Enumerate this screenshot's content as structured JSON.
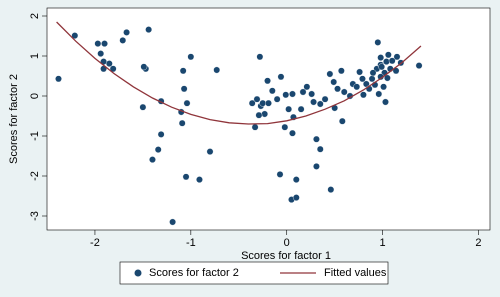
{
  "chart_data": {
    "type": "scatter",
    "xlabel": "Scores for factor 1",
    "ylabel": "Scores for factor 2",
    "xlim": [
      -2.5,
      2.12
    ],
    "ylim": [
      -3.35,
      2.2
    ],
    "xticks": [
      -2,
      -1,
      0,
      1,
      2
    ],
    "yticks": [
      -3,
      -2,
      -1,
      0,
      1,
      2
    ],
    "series": [
      {
        "name": "Scores for factor 2",
        "type": "scatter",
        "color": "#1a476f",
        "x": [
          -2.38,
          -2.21,
          -1.97,
          -1.9,
          -1.94,
          -1.91,
          -1.85,
          -1.91,
          -1.81,
          -1.71,
          -1.67,
          -1.44,
          -1.47,
          -1.49,
          -1.5,
          -1.31,
          -1.31,
          -1.4,
          -1.34,
          -1.08,
          -1.0,
          -1.07,
          -1.04,
          -1.09,
          -1.1,
          -1.05,
          -0.91,
          -0.8,
          -1.19,
          -0.73,
          -0.28,
          -0.36,
          -0.31,
          -0.27,
          -0.25,
          -0.19,
          -0.33,
          -0.23,
          -0.29,
          -0.2,
          -0.15,
          -0.1,
          -0.06,
          -0.01,
          0.02,
          -0.02,
          0.06,
          0.07,
          -0.07,
          0.1,
          0.05,
          0.1,
          0.06,
          0.17,
          0.21,
          0.26,
          0.28,
          0.15,
          0.35,
          0.4,
          0.31,
          0.35,
          0.31,
          0.45,
          0.49,
          0.53,
          0.57,
          0.6,
          0.66,
          0.69,
          0.73,
          0.76,
          0.79,
          0.8,
          0.46,
          0.5,
          0.58,
          0.83,
          0.86,
          0.89,
          0.92,
          0.95,
          0.94,
          0.98,
          1.02,
          1.04,
          1.06,
          1.08,
          1.1,
          0.98,
          1.01,
          1.03,
          0.96,
          0.98,
          1.15,
          1.19,
          1.14,
          1.38,
          0.99,
          0.9,
          1.05
        ],
        "values": [
          0.43,
          1.51,
          1.31,
          1.31,
          1.06,
          0.86,
          0.81,
          0.68,
          0.68,
          1.39,
          1.59,
          1.66,
          0.68,
          0.73,
          -0.28,
          -0.13,
          -0.96,
          -1.59,
          -1.34,
          0.63,
          0.98,
          0.18,
          -0.18,
          -0.68,
          -0.4,
          -2.02,
          -2.09,
          -1.39,
          -3.15,
          0.65,
          0.98,
          -0.18,
          -0.08,
          -0.25,
          -0.18,
          -0.18,
          -0.78,
          -0.45,
          -0.48,
          0.38,
          0.13,
          -0.08,
          0.48,
          0.03,
          -0.33,
          -0.78,
          -0.93,
          -0.53,
          -1.96,
          -2.09,
          -2.59,
          -2.54,
          0.05,
          0.1,
          0.23,
          0.05,
          -0.15,
          -0.33,
          -0.2,
          -0.08,
          -1.08,
          -1.33,
          -1.76,
          0.55,
          0.35,
          0.18,
          0.63,
          0.1,
          0,
          0.3,
          0.23,
          0.6,
          0.43,
          0.03,
          -2.34,
          -0.3,
          -0.63,
          0.3,
          0.18,
          0.43,
          0.28,
          1.34,
          0.68,
          0.78,
          0.58,
          0.86,
          1.03,
          0.68,
          0.88,
          0.48,
          0.23,
          -0.15,
          0.05,
          0.96,
          0.98,
          0.83,
          0.63,
          0.76,
          0.73,
          0.58,
          0.45
        ]
      },
      {
        "name": "Fitted values",
        "type": "line",
        "color": "#90353b",
        "x": [
          -2.4,
          -2.2,
          -2.0,
          -1.8,
          -1.6,
          -1.4,
          -1.2,
          -1.0,
          -0.8,
          -0.6,
          -0.4,
          -0.2,
          0,
          0.2,
          0.4,
          0.6,
          0.8,
          1.0,
          1.2,
          1.4
        ],
        "values": [
          1.85,
          1.37,
          0.94,
          0.56,
          0.23,
          -0.05,
          -0.28,
          -0.46,
          -0.59,
          -0.67,
          -0.7,
          -0.69,
          -0.62,
          -0.5,
          -0.33,
          -0.12,
          0.15,
          0.47,
          0.83,
          1.25
        ]
      }
    ]
  }
}
